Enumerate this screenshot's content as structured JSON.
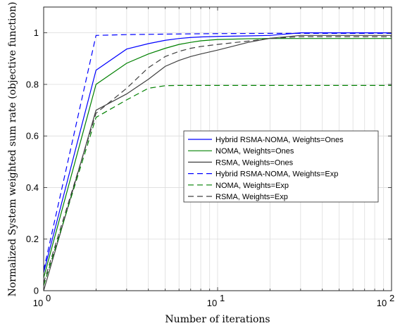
{
  "chart_data": {
    "type": "line",
    "x_scale": "log",
    "xlabel": "Number of iterations",
    "ylabel": "Normalized System weighted sum rate (objective function)",
    "xlim": [
      1,
      100
    ],
    "ylim": [
      0,
      1.1
    ],
    "x_ticks": [
      1,
      10,
      100
    ],
    "x_tick_labels": [
      {
        "base": "10",
        "exp": "0"
      },
      {
        "base": "10",
        "exp": "1"
      },
      {
        "base": "10",
        "exp": "2"
      }
    ],
    "y_ticks": [
      0,
      0.2,
      0.4,
      0.6,
      0.8,
      1
    ],
    "y_tick_labels": [
      "0",
      "0.2",
      "0.4",
      "0.6",
      "0.8",
      "1"
    ],
    "grid": true,
    "legend_position": "middle-right",
    "series": [
      {
        "name": "Hybrid RSMA-NOMA, Weights=Ones",
        "color": "#0000ff",
        "dash": "solid",
        "x": [
          1,
          2,
          3,
          4,
          5,
          6,
          7,
          8,
          10,
          15,
          20,
          30,
          50,
          100
        ],
        "y": [
          0.07,
          0.855,
          0.937,
          0.958,
          0.971,
          0.978,
          0.982,
          0.984,
          0.986,
          0.988,
          0.99,
          1.0,
          1.0,
          1.0
        ]
      },
      {
        "name": "NOMA, Weights=Ones",
        "color": "#008000",
        "dash": "solid",
        "x": [
          1,
          2,
          3,
          4,
          5,
          6,
          7,
          8,
          10,
          15,
          20,
          30,
          50,
          100
        ],
        "y": [
          0.05,
          0.8,
          0.882,
          0.918,
          0.94,
          0.955,
          0.963,
          0.969,
          0.974,
          0.977,
          0.978,
          0.978,
          0.978,
          0.978
        ]
      },
      {
        "name": "RSMA, Weights=Ones",
        "color": "#404040",
        "dash": "solid",
        "x": [
          1,
          2,
          3,
          4,
          5,
          6,
          7,
          8,
          10,
          15,
          20,
          30,
          50,
          100
        ],
        "y": [
          0.0,
          0.7,
          0.763,
          0.82,
          0.87,
          0.893,
          0.908,
          0.918,
          0.933,
          0.963,
          0.979,
          0.99,
          0.99,
          0.99
        ]
      },
      {
        "name": "Hybrid RSMA-NOMA, Weights=Exp",
        "color": "#0000ff",
        "dash": "dashed",
        "x": [
          1,
          2,
          3,
          5,
          10,
          20,
          50,
          100
        ],
        "y": [
          0.08,
          0.99,
          0.993,
          0.995,
          0.997,
          0.998,
          0.998,
          0.998
        ]
      },
      {
        "name": "NOMA, Weights=Exp",
        "color": "#008000",
        "dash": "dashed",
        "x": [
          1,
          2,
          3,
          4,
          5,
          6,
          10,
          20,
          50,
          100
        ],
        "y": [
          0.02,
          0.672,
          0.74,
          0.785,
          0.795,
          0.796,
          0.796,
          0.796,
          0.796,
          0.796
        ]
      },
      {
        "name": "RSMA, Weights=Exp",
        "color": "#404040",
        "dash": "dashed",
        "x": [
          1,
          2,
          3,
          4,
          5,
          6,
          7,
          8,
          10,
          15,
          20,
          30,
          50,
          100
        ],
        "y": [
          0.03,
          0.688,
          0.785,
          0.865,
          0.908,
          0.928,
          0.94,
          0.947,
          0.955,
          0.968,
          0.978,
          0.985,
          0.985,
          0.985
        ]
      }
    ]
  }
}
